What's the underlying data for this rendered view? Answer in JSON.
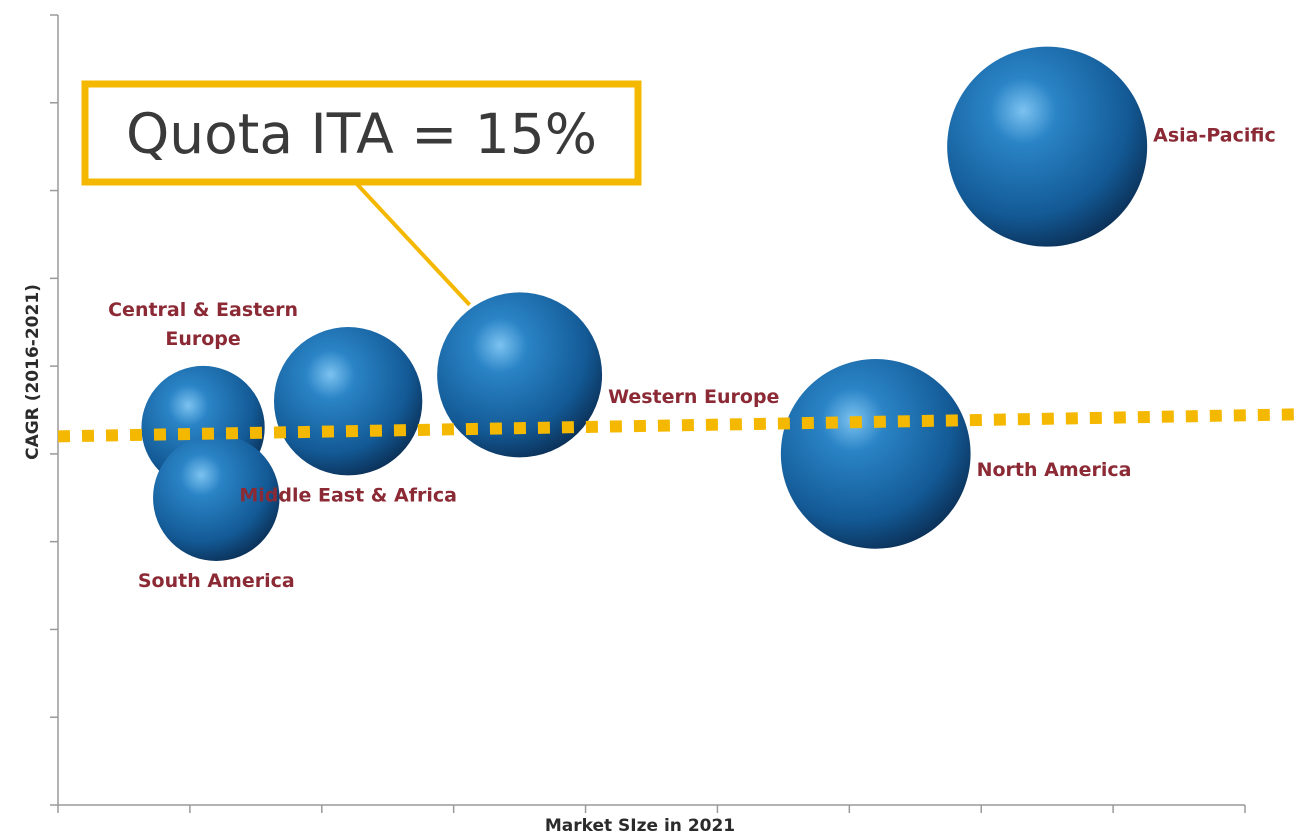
{
  "chart_data": {
    "type": "bubble",
    "xlabel": "Market SIze in 2021",
    "ylabel": "CAGR (2016-2021)",
    "xlim": [
      0,
      9
    ],
    "ylim": [
      0,
      9
    ],
    "x_ticks": 10,
    "y_ticks": 10,
    "grid": false,
    "series": [
      {
        "points": [
          {
            "label": "Asia-Pacific",
            "x": 7.5,
            "y": 7.5,
            "size": 100,
            "label_position": "right"
          },
          {
            "label": "North America",
            "x": 6.2,
            "y": 4.0,
            "size": 90,
            "label_position": "right"
          },
          {
            "label": "Western Europe",
            "x": 3.5,
            "y": 4.9,
            "size": 68,
            "label_position": "right"
          },
          {
            "label": "Middle East & Africa",
            "x": 2.2,
            "y": 4.6,
            "size": 55,
            "label_position": "below"
          },
          {
            "label": "Central & Eastern Europe",
            "label_lines": [
              "Central & Eastern",
              "Europe"
            ],
            "x": 1.1,
            "y": 4.3,
            "size": 38,
            "label_position": "above"
          },
          {
            "label": "South America",
            "x": 1.2,
            "y": 3.5,
            "size": 40,
            "label_position": "below"
          }
        ]
      }
    ],
    "reference_line": {
      "style": "dotted",
      "color": "#f5b800",
      "y_start": 4.2,
      "y_end": 4.45
    },
    "callout": {
      "text": "Quota ITA = 15%",
      "border_color": "#f5b800",
      "points_to": "Western Europe"
    },
    "colors": {
      "bubble": "#1d6fb0",
      "bubble_dark": "#0b2f55",
      "label": "#8b2a35",
      "axis": "#9a9a9a"
    }
  }
}
